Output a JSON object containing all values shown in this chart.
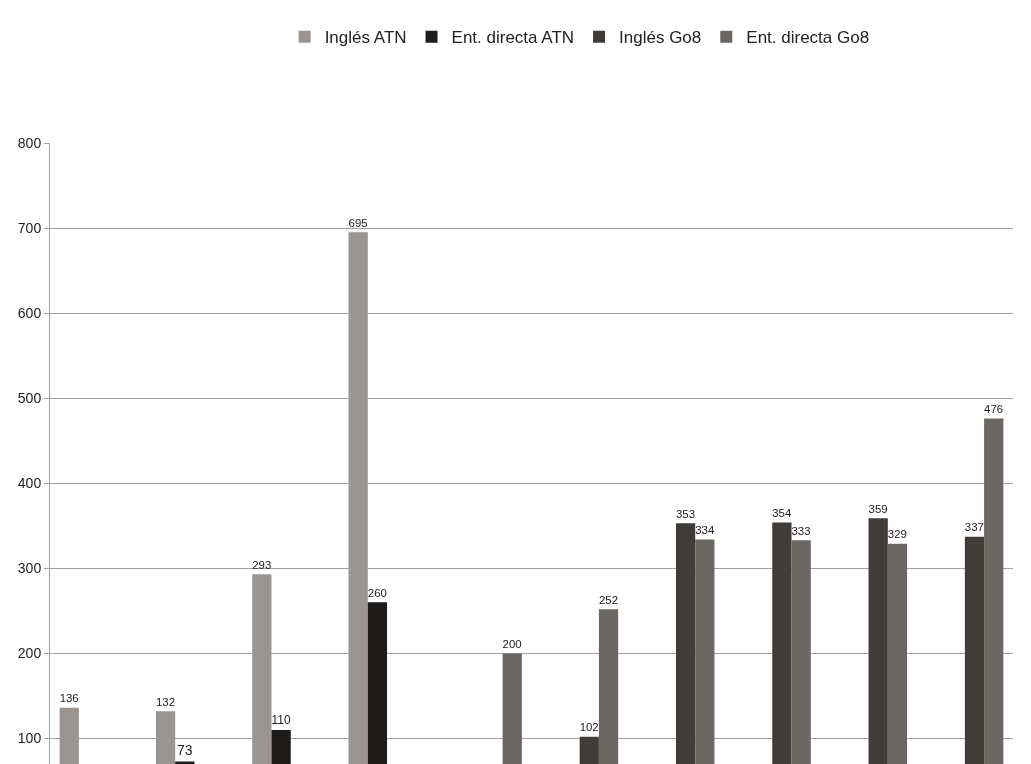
{
  "chart_data": {
    "type": "bar",
    "categories": [
      null,
      null,
      null,
      null,
      null,
      null,
      null,
      null,
      null,
      null
    ],
    "series": [
      {
        "name": "Inglés ATN",
        "color": "#9b9591",
        "values": [
          136,
          132,
          293,
          695,
          null,
          null,
          null,
          null,
          null,
          null
        ]
      },
      {
        "name": "Ent. directa ATN",
        "color": "#1e1c1a",
        "values": [
          null,
          73,
          110,
          260,
          null,
          null,
          null,
          null,
          null,
          null
        ]
      },
      {
        "name": "Inglés Go8",
        "color": "#403c37",
        "values": [
          null,
          null,
          null,
          null,
          null,
          102,
          353,
          354,
          359,
          337
        ]
      },
      {
        "name": "Ent. directa Go8",
        "color": "#6b6863",
        "values": [
          null,
          null,
          null,
          null,
          200,
          252,
          334,
          333,
          329,
          476
        ]
      }
    ],
    "ylim": [
      70,
      800
    ],
    "yticks": [
      100,
      200,
      300,
      400,
      500,
      600,
      700,
      800
    ],
    "grid": "y",
    "legend": "top",
    "tick_labels": "y",
    "data_labels": true
  }
}
